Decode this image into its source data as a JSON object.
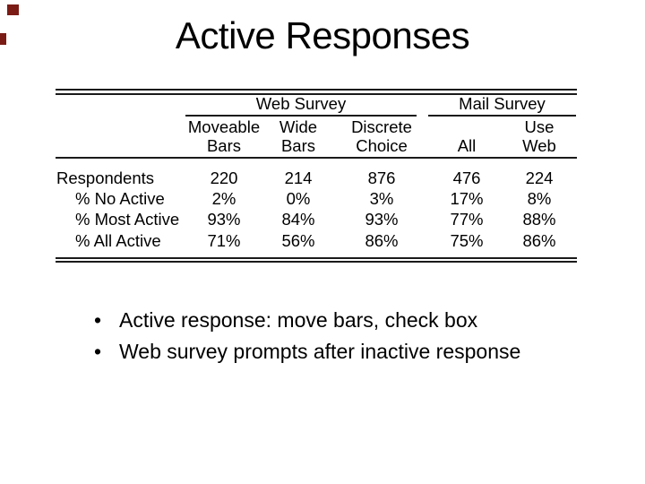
{
  "slide": {
    "title": "Active Responses",
    "accent_color": "#7b1b15",
    "bullet_glyph": "•"
  },
  "table": {
    "groups": [
      {
        "label": "Web Survey"
      },
      {
        "label": "Mail Survey"
      }
    ],
    "columns": [
      {
        "line1": "Moveable",
        "line2": "Bars"
      },
      {
        "line1": "Wide",
        "line2": "Bars"
      },
      {
        "line1": "Discrete",
        "line2": "Choice"
      },
      {
        "line1": "",
        "line2": "All"
      },
      {
        "line1": "Use",
        "line2": "Web"
      }
    ],
    "rows": [
      {
        "label": "Respondents",
        "values": [
          "220",
          "214",
          "876",
          "476",
          "224"
        ]
      },
      {
        "label": "% No Active",
        "values": [
          "2%",
          "0%",
          "3%",
          "17%",
          "8%"
        ]
      },
      {
        "label": "% Most Active",
        "values": [
          "93%",
          "84%",
          "93%",
          "77%",
          "88%"
        ]
      },
      {
        "label": "% All Active",
        "values": [
          "71%",
          "56%",
          "86%",
          "75%",
          "86%"
        ]
      }
    ]
  },
  "bullets": [
    "Active response: move bars, check box",
    "Web survey prompts after inactive response"
  ],
  "chart_data": {
    "type": "table",
    "title": "Active Responses",
    "column_groups": [
      {
        "label": "Web Survey",
        "columns": [
          "Moveable Bars",
          "Wide Bars",
          "Discrete Choice"
        ]
      },
      {
        "label": "Mail Survey",
        "columns": [
          "All",
          "Use Web"
        ]
      }
    ],
    "columns": [
      "Moveable Bars",
      "Wide Bars",
      "Discrete Choice",
      "All",
      "Use Web"
    ],
    "row_labels": [
      "Respondents",
      "% No Active",
      "% Most Active",
      "% All Active"
    ],
    "rows": [
      [
        220,
        214,
        876,
        476,
        224
      ],
      [
        "2%",
        "0%",
        "3%",
        "17%",
        "8%"
      ],
      [
        "93%",
        "84%",
        "93%",
        "77%",
        "88%"
      ],
      [
        "71%",
        "56%",
        "86%",
        "75%",
        "86%"
      ]
    ]
  }
}
